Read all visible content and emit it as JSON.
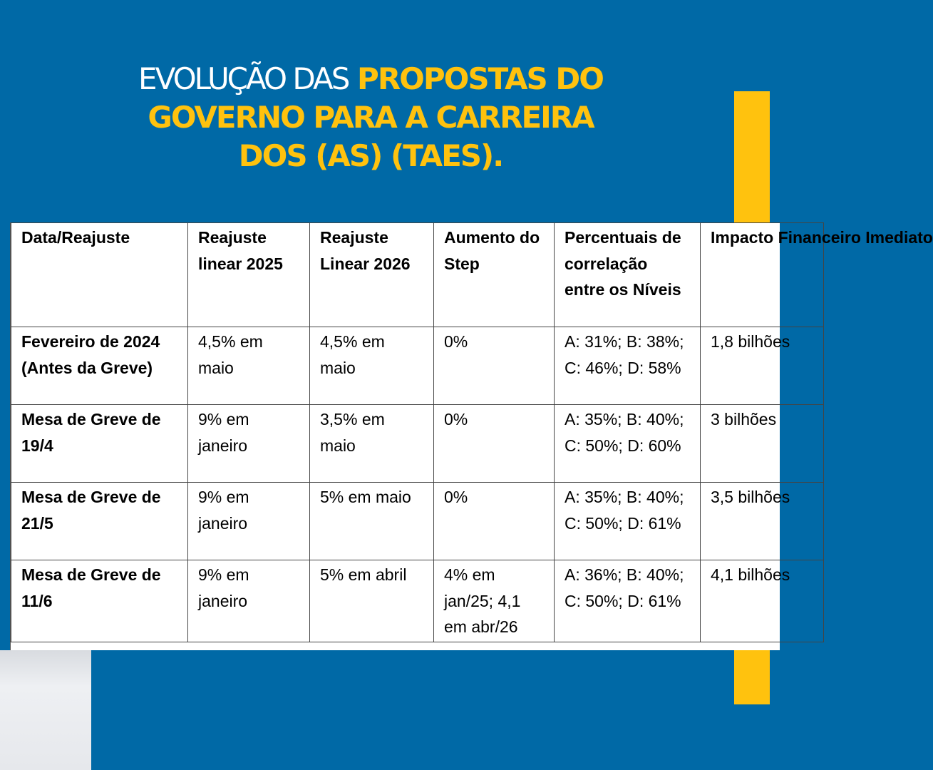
{
  "title": {
    "part1": "EVOLUÇÃO DAS",
    "part2": "PROPOSTAS DO",
    "line2": "GOVERNO PARA A CARREIRA",
    "line3": "DOS (AS) (TAES)."
  },
  "colors": {
    "background": "#0069a6",
    "accent": "#ffc20e"
  },
  "table": {
    "headers": [
      "Data/Reajuste",
      "Reajuste linear 2025",
      "Reajuste Linear 2026",
      "Aumento do Step",
      "Percentuais de correlação entre os Níveis",
      "Impacto Financeiro Imediato"
    ],
    "rows": [
      [
        "Fevereiro de 2024 (Antes da Greve)",
        "4,5% em maio",
        "4,5% em maio",
        "0%",
        "A: 31%; B: 38%; C: 46%; D: 58%",
        "1,8 bilhões"
      ],
      [
        "Mesa de Greve de 19/4",
        "9% em janeiro",
        "3,5% em maio",
        "0%",
        "A: 35%; B: 40%; C: 50%; D: 60%",
        "3 bilhões"
      ],
      [
        "Mesa de Greve de 21/5",
        "9% em janeiro",
        "5% em maio",
        "0%",
        "A: 35%; B: 40%; C: 50%; D: 61%",
        "3,5 bilhões"
      ],
      [
        "Mesa de Greve de 11/6",
        "9% em janeiro",
        "5% em abril",
        "4% em jan/25; 4,1 em abr/26",
        "A: 36%; B: 40%; C: 50%; D: 61%",
        "4,1 bilhões"
      ]
    ]
  }
}
